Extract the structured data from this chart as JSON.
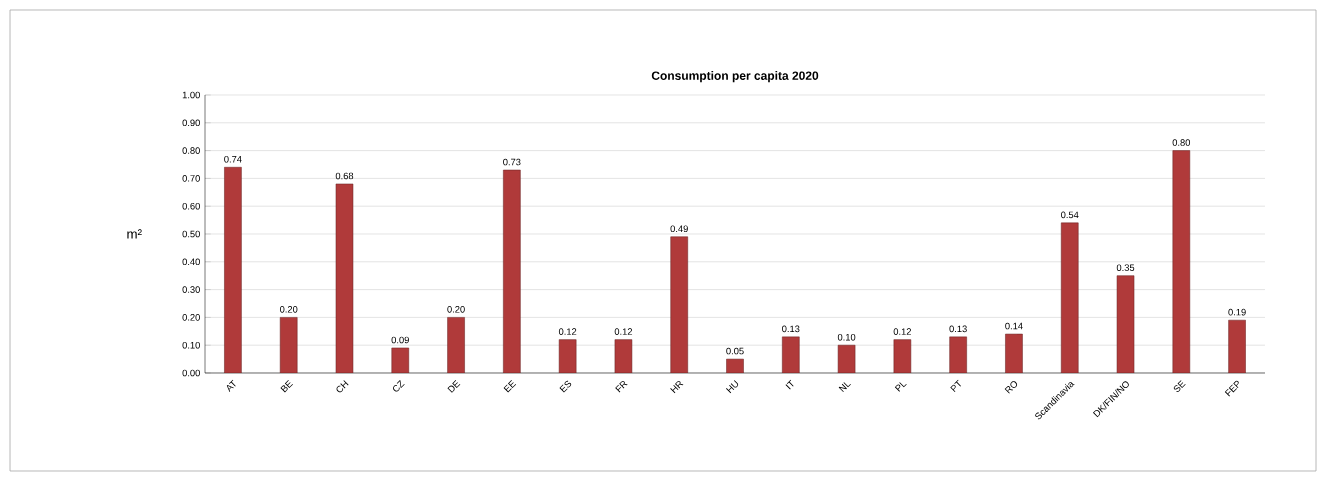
{
  "chart_data": {
    "type": "bar",
    "title": "Consumption per capita 2020",
    "ylabel": "m²",
    "categories": [
      "AT",
      "BE",
      "CH",
      "CZ",
      "DE",
      "EE",
      "ES",
      "FR",
      "HR",
      "HU",
      "IT",
      "NL",
      "PL",
      "PT",
      "RO",
      "Scandinavia",
      "DK/FIN/NO",
      "SE",
      "FEP"
    ],
    "values": [
      0.74,
      0.2,
      0.68,
      0.09,
      0.2,
      0.73,
      0.12,
      0.12,
      0.49,
      0.05,
      0.13,
      0.1,
      0.12,
      0.13,
      0.14,
      0.54,
      0.35,
      0.8,
      0.19
    ],
    "value_labels": [
      "0.74",
      "0.20",
      "0.68",
      "0.09",
      "0.20",
      "0.73",
      "0.12",
      "0.12",
      "0.49",
      "0.05",
      "0.13",
      "0.10",
      "0.12",
      "0.13",
      "0.14",
      "0.54",
      "0.35",
      "0.80",
      "0.19"
    ],
    "color": "#b03a3a",
    "ylim": [
      0,
      1
    ],
    "yticks": [
      {
        "value": 0,
        "label": "0.00"
      },
      {
        "value": 0.1,
        "label": "0.10"
      },
      {
        "value": 0.2,
        "label": "0.20"
      },
      {
        "value": 0.3,
        "label": "0.30"
      },
      {
        "value": 0.4,
        "label": "0.40"
      },
      {
        "value": 0.5,
        "label": "0.50"
      },
      {
        "value": 0.6,
        "label": "0.60"
      },
      {
        "value": 0.7,
        "label": "0.70"
      },
      {
        "value": 0.8,
        "label": "0.80"
      },
      {
        "value": 0.9,
        "label": "0.90"
      },
      {
        "value": 1.0,
        "label": "1.00"
      }
    ],
    "grid": "y"
  }
}
